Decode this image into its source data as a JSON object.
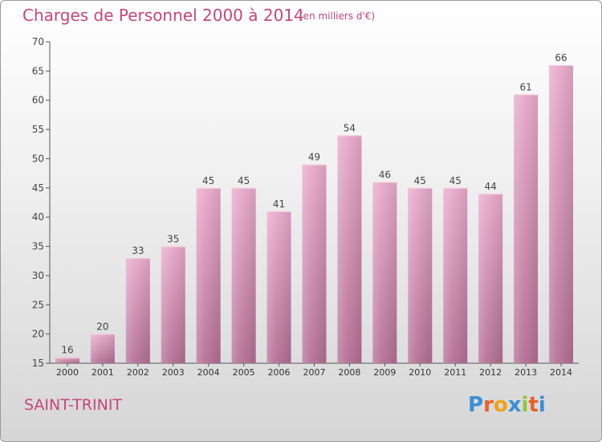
{
  "title": "Charges de Personnel 2000 à 2014",
  "subtitle": "(en milliers d'€)",
  "commune": "SAINT-TRINIT",
  "logo": {
    "text": "Proxiti",
    "letter_colors": [
      "#3a8fd6",
      "#e8612a",
      "#f0a11b",
      "#3a8fd6",
      "#8fc63f",
      "#e8612a",
      "#3a8fd6"
    ]
  },
  "colors": {
    "title": "#c3477a",
    "bar_top": "#e8a9ca",
    "bar_bottom": "#b26d93",
    "axis": "#555555",
    "grid": "#d0d0d0"
  },
  "chart_data": {
    "type": "bar",
    "categories": [
      "2000",
      "2001",
      "2002",
      "2003",
      "2004",
      "2005",
      "2006",
      "2007",
      "2008",
      "2009",
      "2010",
      "2011",
      "2012",
      "2013",
      "2014"
    ],
    "values": [
      16,
      20,
      33,
      35,
      45,
      45,
      41,
      49,
      54,
      46,
      45,
      45,
      44,
      61,
      66
    ],
    "ylim": [
      15,
      70
    ],
    "yticks": [
      15,
      20,
      25,
      30,
      35,
      40,
      45,
      50,
      55,
      60,
      65,
      70
    ],
    "grid": false,
    "data_labels": true
  }
}
